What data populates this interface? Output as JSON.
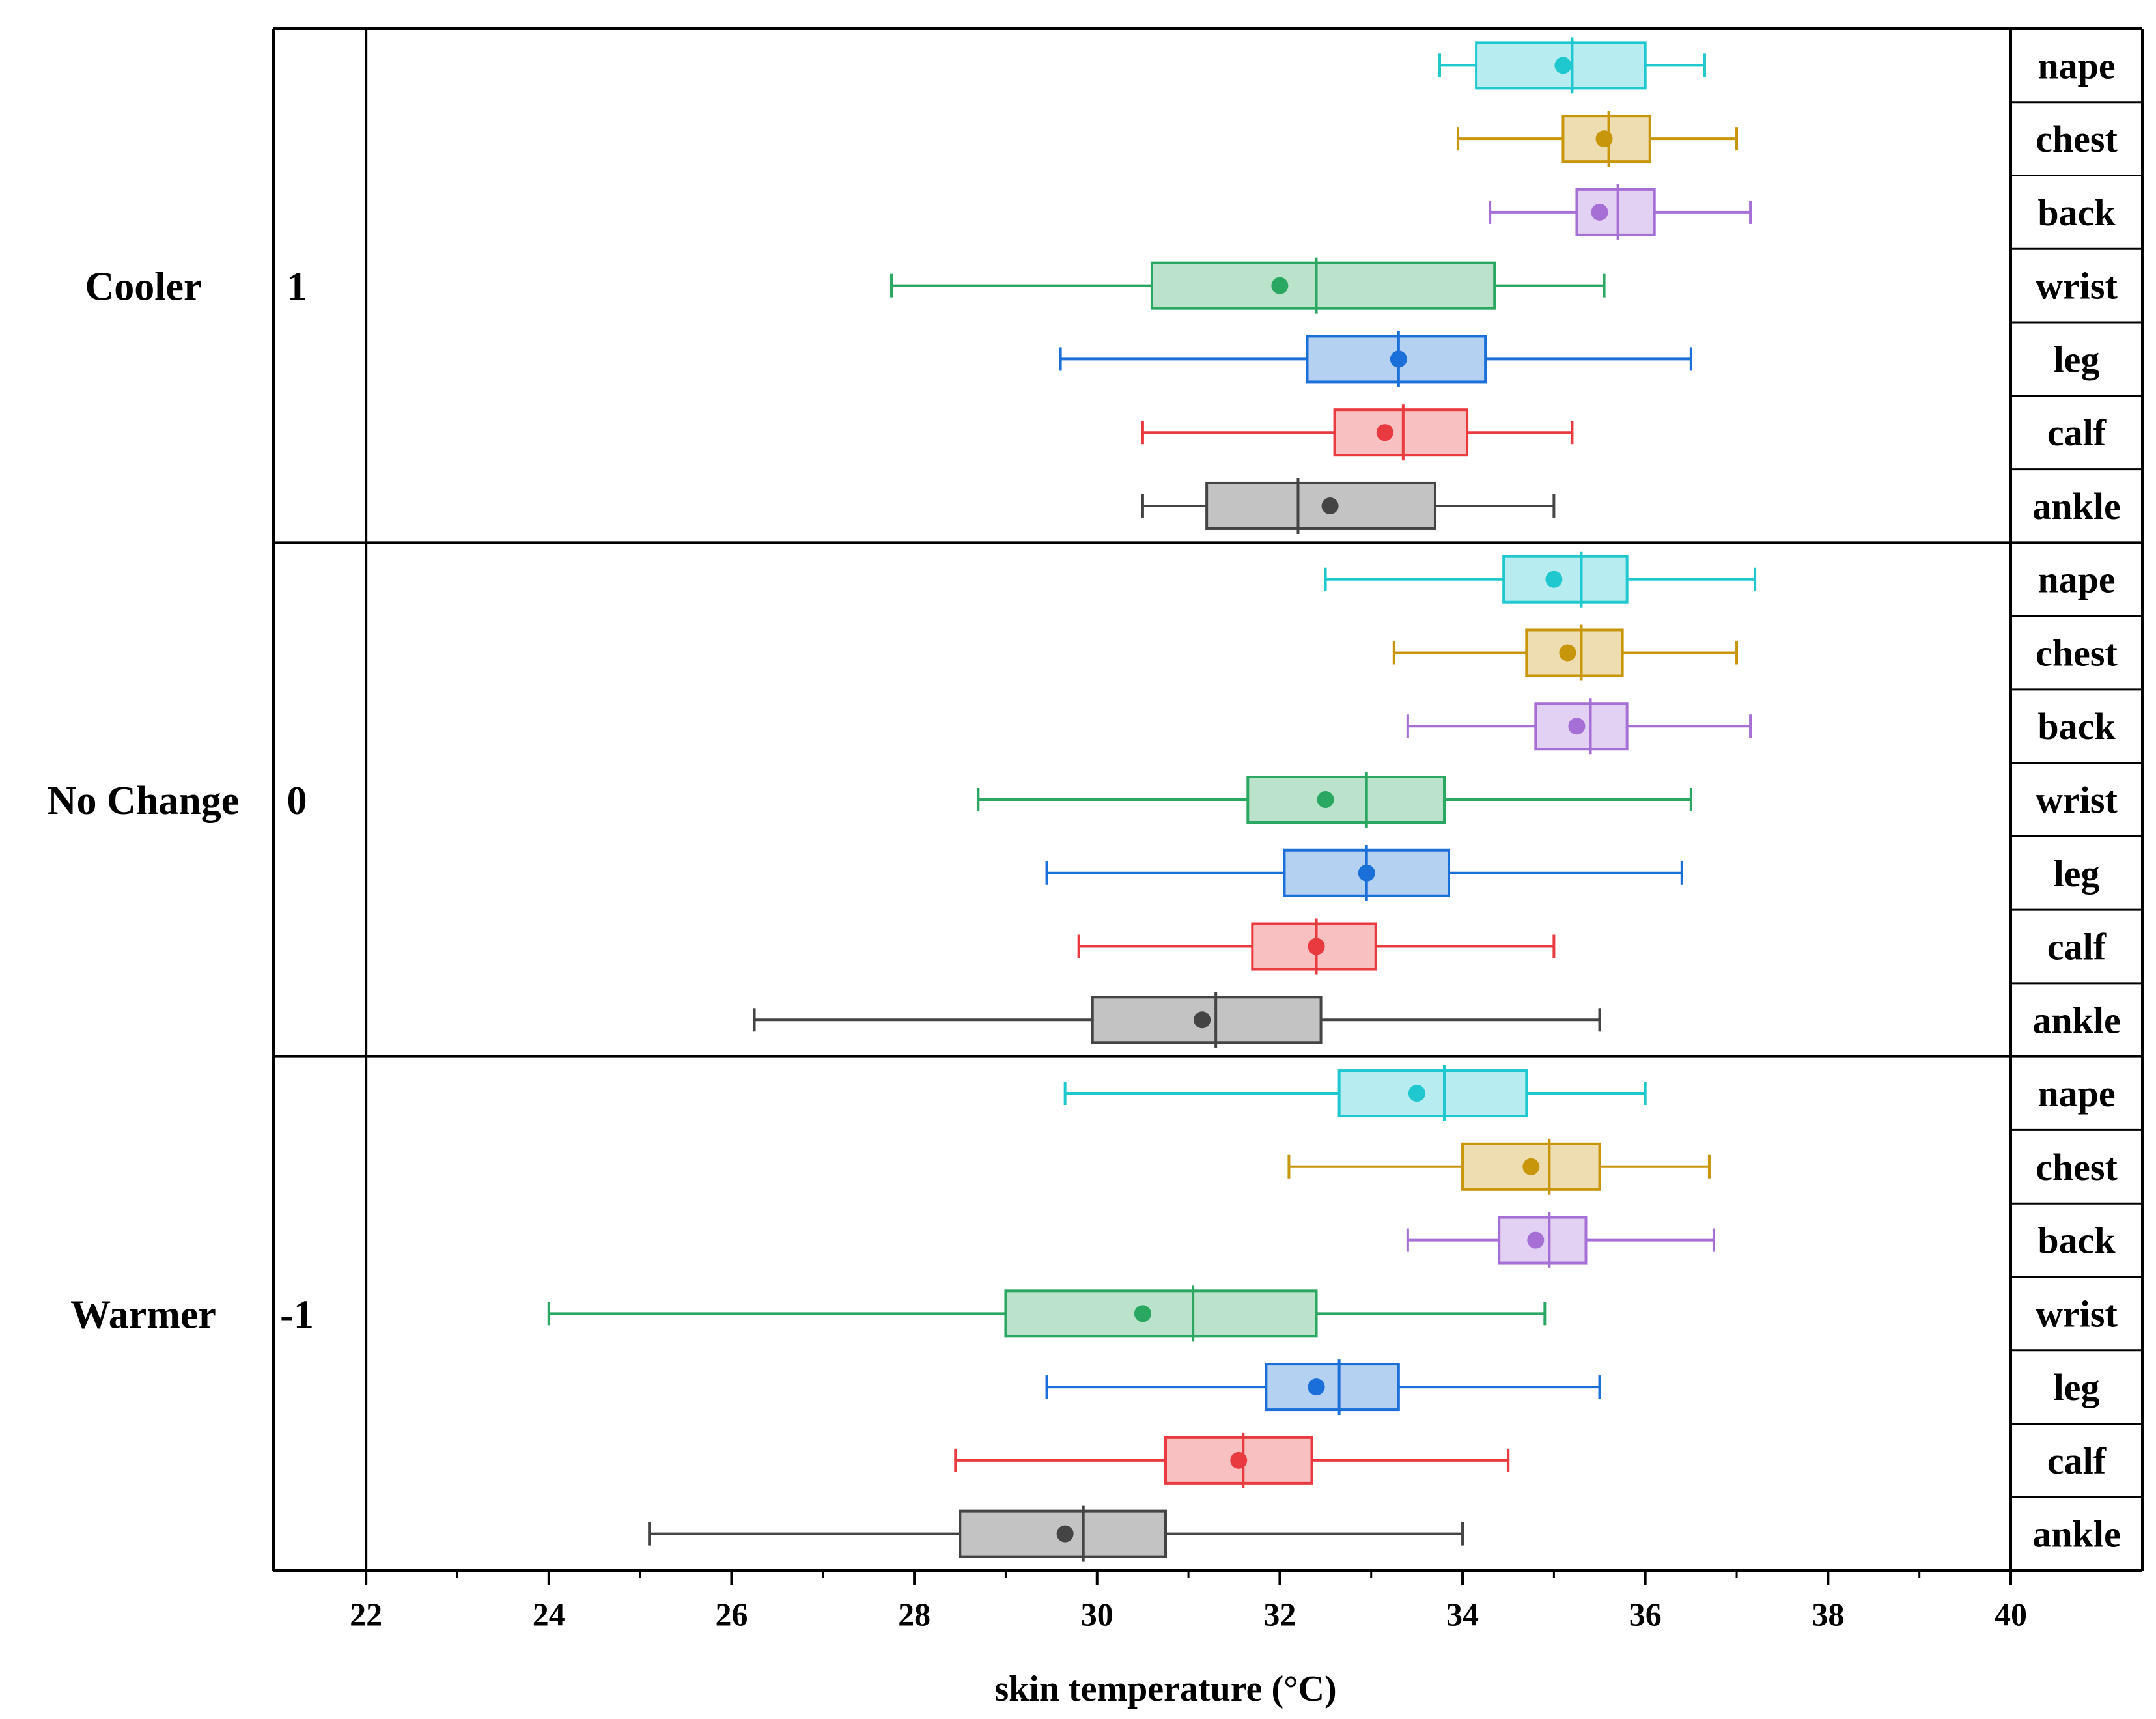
{
  "chart_data": {
    "type": "box",
    "xlabel": "skin temperature (°C)",
    "xlim": [
      21.5,
      40
    ],
    "xticks": [
      22,
      24,
      26,
      28,
      30,
      32,
      34,
      36,
      38,
      40
    ],
    "tick_labels": [
      "22",
      "24",
      "26",
      "28",
      "30",
      "32",
      "34",
      "36",
      "38",
      "40"
    ],
    "colors": {
      "nape": "#1fc8cf",
      "chest": "#c8960a",
      "back": "#a66fd6",
      "wrist": "#2aa761",
      "leg": "#1a6fd8",
      "calf": "#e83a3f",
      "ankle": "#444444"
    },
    "groups": [
      {
        "name": "Cooler",
        "code": "1",
        "boxes": [
          {
            "site": "nape",
            "whisker_low": 33.75,
            "q1": 34.15,
            "median": 35.2,
            "q3": 36.0,
            "whisker_high": 36.65,
            "mean": 35.1
          },
          {
            "site": "chest",
            "whisker_low": 33.95,
            "q1": 35.1,
            "median": 35.6,
            "q3": 36.05,
            "whisker_high": 37.0,
            "mean": 35.55
          },
          {
            "site": "back",
            "whisker_low": 34.3,
            "q1": 35.25,
            "median": 35.7,
            "q3": 36.1,
            "whisker_high": 37.15,
            "mean": 35.5
          },
          {
            "site": "wrist",
            "whisker_low": 27.75,
            "q1": 30.6,
            "median": 32.4,
            "q3": 34.35,
            "whisker_high": 35.55,
            "mean": 32.0
          },
          {
            "site": "leg",
            "whisker_low": 29.6,
            "q1": 32.3,
            "median": 33.3,
            "q3": 34.25,
            "whisker_high": 36.5,
            "mean": 33.3
          },
          {
            "site": "calf",
            "whisker_low": 30.5,
            "q1": 32.6,
            "median": 33.35,
            "q3": 34.05,
            "whisker_high": 35.2,
            "mean": 33.15
          },
          {
            "site": "ankle",
            "whisker_low": 30.5,
            "q1": 31.2,
            "median": 32.2,
            "q3": 33.7,
            "whisker_high": 35.0,
            "mean": 32.55
          }
        ]
      },
      {
        "name": "No Change",
        "code": "0",
        "boxes": [
          {
            "site": "nape",
            "whisker_low": 32.5,
            "q1": 34.45,
            "median": 35.3,
            "q3": 35.8,
            "whisker_high": 37.2,
            "mean": 35.0
          },
          {
            "site": "chest",
            "whisker_low": 33.25,
            "q1": 34.7,
            "median": 35.3,
            "q3": 35.75,
            "whisker_high": 37.0,
            "mean": 35.15
          },
          {
            "site": "back",
            "whisker_low": 33.4,
            "q1": 34.8,
            "median": 35.4,
            "q3": 35.8,
            "whisker_high": 37.15,
            "mean": 35.25
          },
          {
            "site": "wrist",
            "whisker_low": 28.7,
            "q1": 31.65,
            "median": 32.95,
            "q3": 33.8,
            "whisker_high": 36.5,
            "mean": 32.5
          },
          {
            "site": "leg",
            "whisker_low": 29.45,
            "q1": 32.05,
            "median": 32.95,
            "q3": 33.85,
            "whisker_high": 36.4,
            "mean": 32.95
          },
          {
            "site": "calf",
            "whisker_low": 29.8,
            "q1": 31.7,
            "median": 32.4,
            "q3": 33.05,
            "whisker_high": 35.0,
            "mean": 32.4
          },
          {
            "site": "ankle",
            "whisker_low": 26.25,
            "q1": 29.95,
            "median": 31.3,
            "q3": 32.45,
            "whisker_high": 35.5,
            "mean": 31.15
          }
        ]
      },
      {
        "name": "Warmer",
        "code": "-1",
        "boxes": [
          {
            "site": "nape",
            "whisker_low": 29.65,
            "q1": 32.65,
            "median": 33.8,
            "q3": 34.7,
            "whisker_high": 36.0,
            "mean": 33.5
          },
          {
            "site": "chest",
            "whisker_low": 32.1,
            "q1": 34.0,
            "median": 34.95,
            "q3": 35.5,
            "whisker_high": 36.7,
            "mean": 34.75
          },
          {
            "site": "back",
            "whisker_low": 33.4,
            "q1": 34.4,
            "median": 34.95,
            "q3": 35.35,
            "whisker_high": 36.75,
            "mean": 34.8
          },
          {
            "site": "wrist",
            "whisker_low": 24.0,
            "q1": 29.0,
            "median": 31.05,
            "q3": 32.4,
            "whisker_high": 34.9,
            "mean": 30.5
          },
          {
            "site": "leg",
            "whisker_low": 29.45,
            "q1": 31.85,
            "median": 32.65,
            "q3": 33.3,
            "whisker_high": 35.5,
            "mean": 32.4
          },
          {
            "site": "calf",
            "whisker_low": 28.45,
            "q1": 30.75,
            "median": 31.6,
            "q3": 32.35,
            "whisker_high": 34.5,
            "mean": 31.55
          },
          {
            "site": "ankle",
            "whisker_low": 25.1,
            "q1": 28.5,
            "median": 29.85,
            "q3": 30.75,
            "whisker_high": 34.0,
            "mean": 29.65
          }
        ]
      }
    ]
  }
}
